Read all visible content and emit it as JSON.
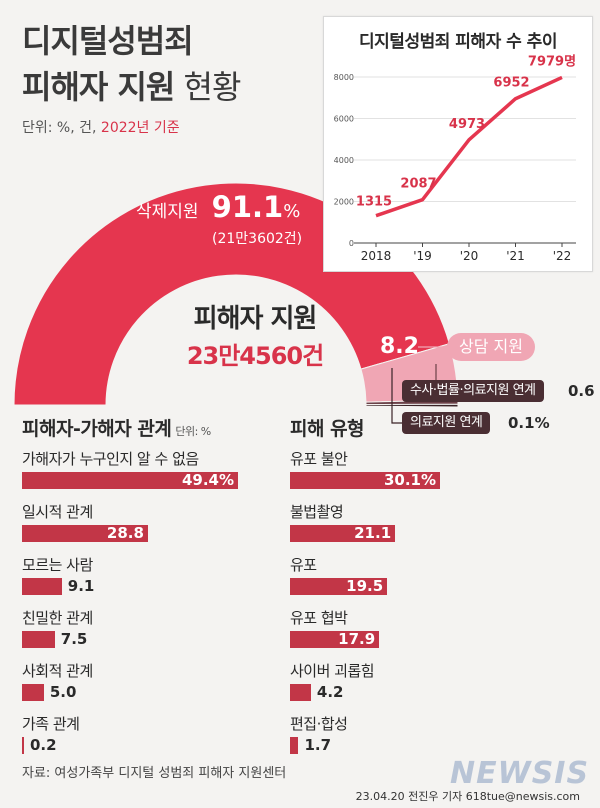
{
  "header": {
    "title_line1": "디지털성범죄",
    "title_line2_bold": "피해자 지원",
    "title_line2_light": " 현황",
    "unit_prefix": "단위: %, 건, ",
    "unit_year": "2022년 기준"
  },
  "colors": {
    "main_red": "#e5364f",
    "light_pink": "#f0a6b4",
    "bar_red": "#c23647",
    "dark_tag": "#4a2e33"
  },
  "chart_data": [
    {
      "type": "line",
      "title": "디지털성범죄 피해자 수 추이",
      "x": [
        "2018",
        "'19",
        "'20",
        "'21",
        "'22"
      ],
      "series": [
        {
          "values": [
            1315,
            2087,
            4973,
            6952,
            7979
          ]
        }
      ],
      "value_labels": [
        "1315",
        "2087",
        "4973",
        "6952",
        "7979명"
      ],
      "yticks": [
        "8000",
        "6000",
        "4000",
        "2000",
        "0"
      ],
      "ylim": [
        0,
        8000
      ]
    },
    {
      "type": "pie",
      "center_title": "피해자 지원",
      "center_total": "23만4560건",
      "slices": [
        {
          "name": "삭제지원",
          "value": 91.1,
          "value_label": "91.1",
          "unit": "%",
          "count": "(21만3602건)"
        },
        {
          "name": "상담 지원",
          "value": 8.2,
          "value_label": "8.2"
        },
        {
          "name": "수사·법률·의료지원 연계",
          "value": 0.6,
          "value_label": "0.6"
        },
        {
          "name": "의료지원 연계",
          "value": 0.1,
          "value_label": "0.1%"
        }
      ]
    },
    {
      "type": "bar",
      "title": "피해자-가해자 관계",
      "unit": "단위: %",
      "categories": [
        "가해자가 누구인지 알 수 없음",
        "일시적 관계",
        "모르는 사람",
        "친밀한 관계",
        "사회적 관계",
        "가족 관계"
      ],
      "values": [
        49.4,
        28.8,
        9.1,
        7.5,
        5.0,
        0.2
      ],
      "value_labels": [
        "49.4%",
        "28.8",
        "9.1",
        "7.5",
        "5.0",
        "0.2"
      ]
    },
    {
      "type": "bar",
      "title": "피해 유형",
      "categories": [
        "유포 불안",
        "불법촬영",
        "유포",
        "유포 협박",
        "사이버 괴롭힘",
        "편집·합성"
      ],
      "values": [
        30.1,
        21.1,
        19.5,
        17.9,
        4.2,
        1.7
      ],
      "value_labels": [
        "30.1%",
        "21.1",
        "19.5",
        "17.9",
        "4.2",
        "1.7"
      ]
    }
  ],
  "footer": {
    "source": "자료: 여성가족부 디지털 성범죄 피해자 지원센터",
    "credit": "23.04.20 전진우 기자 618tue@newsis.com",
    "watermark": "NEWSIS"
  }
}
